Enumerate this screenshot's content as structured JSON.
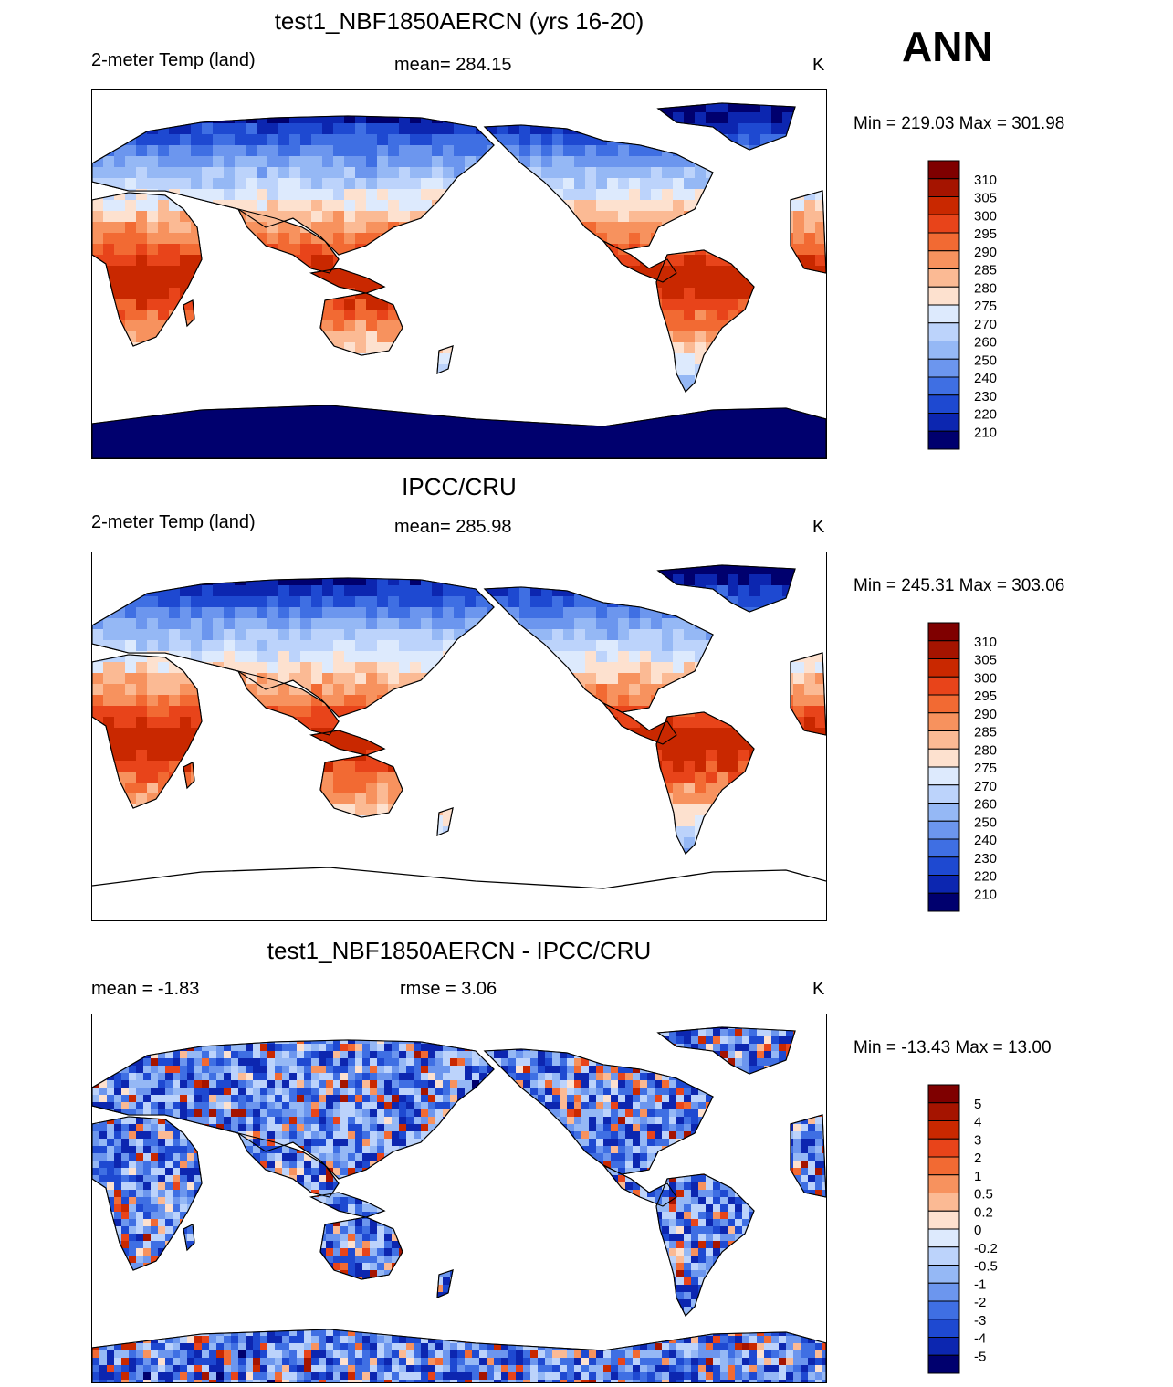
{
  "season": "ANN",
  "panels": [
    {
      "id": "model",
      "title": "test1_NBF1850AERCN (yrs 16-20)",
      "left_label": "2-meter Temp (land)",
      "center_label": "mean= 284.15",
      "units": "K",
      "minmax": "Min = 219.03 Max = 301.98",
      "field": "absolute"
    },
    {
      "id": "obs",
      "title": "IPCC/CRU",
      "left_label": "2-meter Temp (land)",
      "center_label": "mean= 285.98",
      "units": "K",
      "minmax": "Min = 245.31 Max = 303.06",
      "field": "obs"
    },
    {
      "id": "diff",
      "title": "test1_NBF1850AERCN - IPCC/CRU",
      "left_label": "mean =  -1.83",
      "center_label": "rmse =   3.06",
      "units": "K",
      "minmax": "Min = -13.43 Max =  13.00",
      "field": "difference"
    }
  ],
  "chart_data": {
    "type": "heatmap",
    "projection": "cylindrical equidistant, centered 180",
    "variable": "2-meter Temp (land)",
    "units": "K",
    "colorbars": {
      "absolute": {
        "levels": [
          "310",
          "305",
          "300",
          "295",
          "290",
          "285",
          "280",
          "275",
          "270",
          "260",
          "250",
          "240",
          "230",
          "220",
          "210"
        ],
        "colors": [
          "#7f0000",
          "#a51400",
          "#c92800",
          "#e8441a",
          "#f26a33",
          "#f7925e",
          "#fbba94",
          "#fde1cf",
          "#ddeafd",
          "#bcd3fb",
          "#95b8f5",
          "#6c96ee",
          "#3f6fe3",
          "#1e49d1",
          "#0c26b0",
          "#00006e"
        ]
      },
      "difference": {
        "levels": [
          "5",
          "4",
          "3",
          "2",
          "1",
          "0.5",
          "0.2",
          "0",
          "-0.2",
          "-0.5",
          "-1",
          "-2",
          "-3",
          "-4",
          "-5"
        ],
        "colors": [
          "#7f0000",
          "#a51400",
          "#c92800",
          "#e8441a",
          "#f26a33",
          "#f7925e",
          "#fbba94",
          "#fde1cf",
          "#ddeafd",
          "#bcd3fb",
          "#95b8f5",
          "#6c96ee",
          "#3f6fe3",
          "#1e49d1",
          "#0c26b0",
          "#00006e"
        ]
      }
    }
  }
}
